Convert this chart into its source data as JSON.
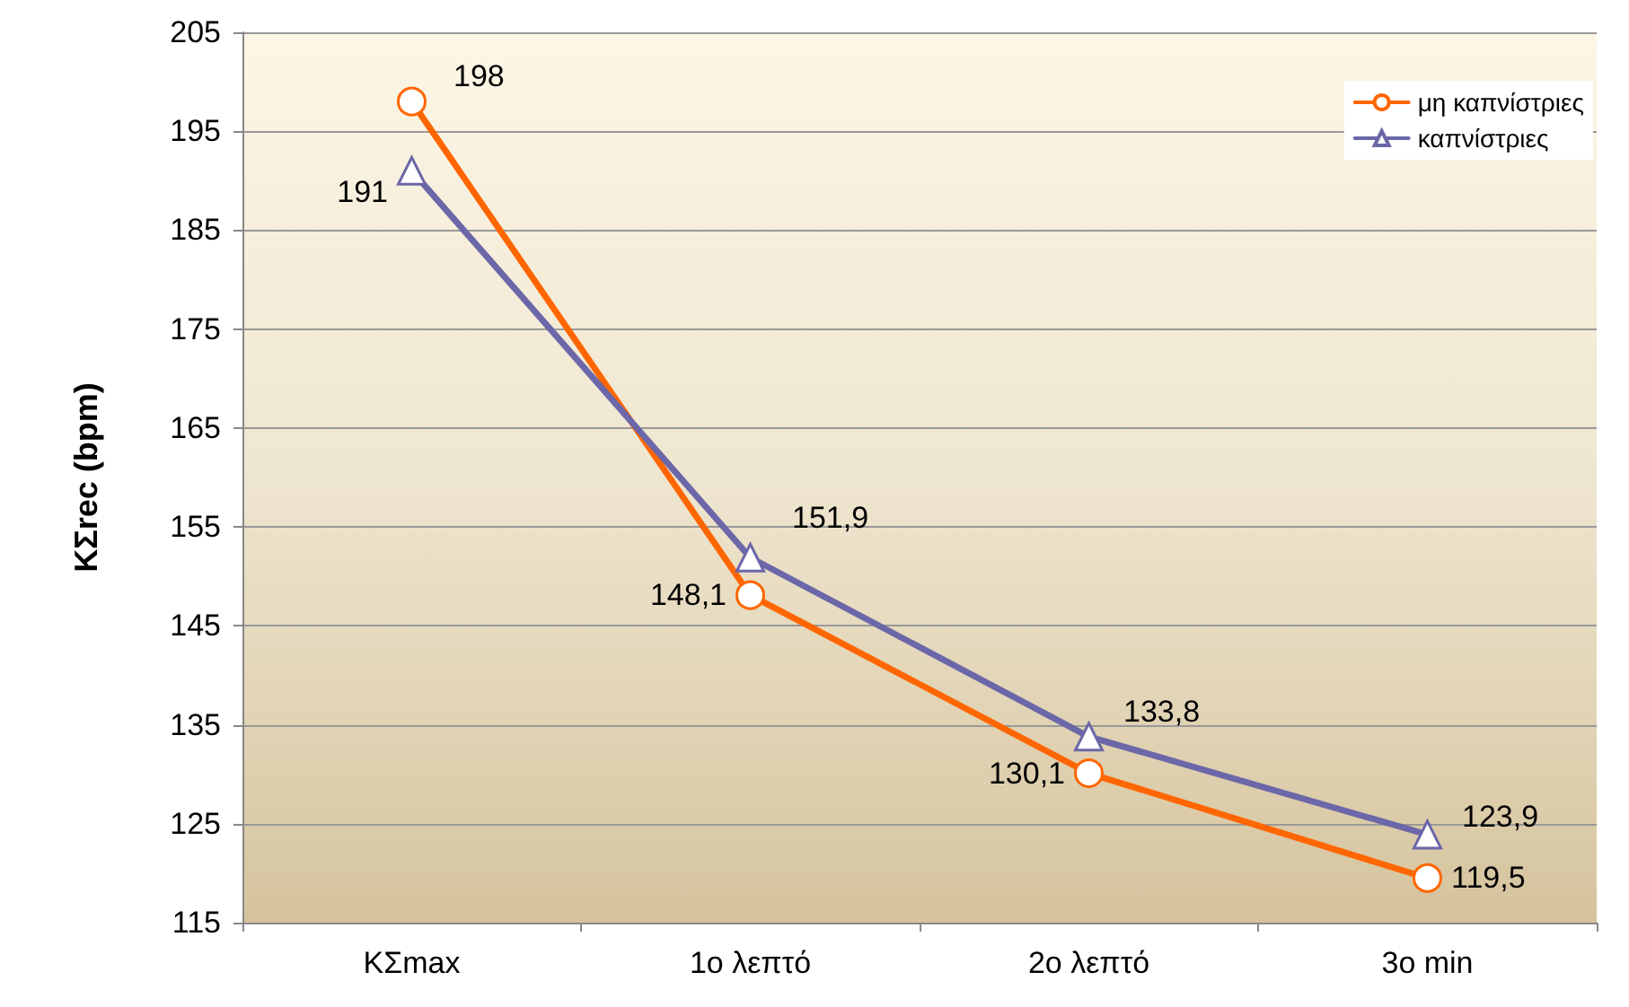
{
  "chart_data": {
    "type": "line",
    "ylabel": "ΚΣrec (bpm)",
    "categories": [
      "ΚΣmax",
      "1ο λεπτό",
      "2ο λεπτό",
      "3ο min"
    ],
    "series": [
      {
        "name": "μη καπνίστριες",
        "color": "#ff6600",
        "marker": "circle",
        "values": [
          198,
          148.1,
          130.1,
          119.5
        ],
        "value_labels": [
          "198",
          "148,1",
          "130,1",
          "119,5"
        ]
      },
      {
        "name": "καπνίστριες",
        "color": "#6b67a8",
        "marker": "triangle",
        "values": [
          191,
          151.9,
          133.8,
          123.9
        ],
        "value_labels": [
          "191",
          "151,9",
          "133,8",
          "123,9"
        ]
      }
    ],
    "ylim": [
      115,
      205
    ],
    "yticks": [
      115,
      125,
      135,
      145,
      155,
      165,
      175,
      185,
      195,
      205
    ],
    "grid": "y",
    "legend": "top right",
    "line_style": "solid"
  }
}
